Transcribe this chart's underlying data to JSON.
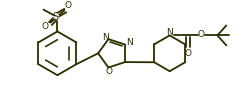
{
  "bg_color": "#ffffff",
  "line_color": "#2d2d00",
  "line_width": 1.3,
  "figsize": [
    2.38,
    1.03
  ],
  "dpi": 100,
  "xlim": [
    0,
    238
  ],
  "ylim": [
    0,
    103
  ]
}
